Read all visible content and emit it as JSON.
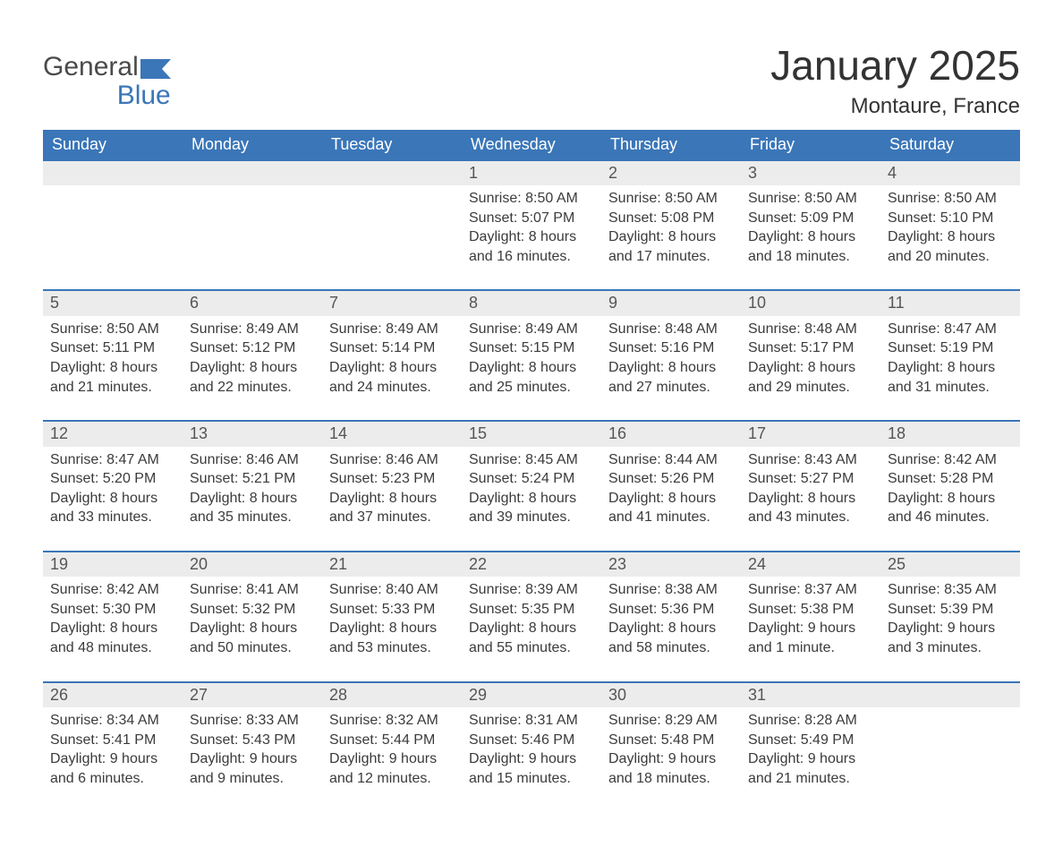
{
  "brand": {
    "general": "General",
    "blue": "Blue"
  },
  "colors": {
    "header_bg": "#3a76b8",
    "header_text": "#ffffff",
    "daynum_bg": "#ececec",
    "daynum_text": "#555555",
    "body_text": "#3b3b3b",
    "rule": "#3a76b8",
    "page_bg": "#ffffff"
  },
  "title": "January 2025",
  "location": "Montaure, France",
  "weekdays": [
    "Sunday",
    "Monday",
    "Tuesday",
    "Wednesday",
    "Thursday",
    "Friday",
    "Saturday"
  ],
  "weeks": [
    [
      null,
      null,
      null,
      {
        "n": "1",
        "sr": "Sunrise: 8:50 AM",
        "ss": "Sunset: 5:07 PM",
        "d1": "Daylight: 8 hours",
        "d2": "and 16 minutes."
      },
      {
        "n": "2",
        "sr": "Sunrise: 8:50 AM",
        "ss": "Sunset: 5:08 PM",
        "d1": "Daylight: 8 hours",
        "d2": "and 17 minutes."
      },
      {
        "n": "3",
        "sr": "Sunrise: 8:50 AM",
        "ss": "Sunset: 5:09 PM",
        "d1": "Daylight: 8 hours",
        "d2": "and 18 minutes."
      },
      {
        "n": "4",
        "sr": "Sunrise: 8:50 AM",
        "ss": "Sunset: 5:10 PM",
        "d1": "Daylight: 8 hours",
        "d2": "and 20 minutes."
      }
    ],
    [
      {
        "n": "5",
        "sr": "Sunrise: 8:50 AM",
        "ss": "Sunset: 5:11 PM",
        "d1": "Daylight: 8 hours",
        "d2": "and 21 minutes."
      },
      {
        "n": "6",
        "sr": "Sunrise: 8:49 AM",
        "ss": "Sunset: 5:12 PM",
        "d1": "Daylight: 8 hours",
        "d2": "and 22 minutes."
      },
      {
        "n": "7",
        "sr": "Sunrise: 8:49 AM",
        "ss": "Sunset: 5:14 PM",
        "d1": "Daylight: 8 hours",
        "d2": "and 24 minutes."
      },
      {
        "n": "8",
        "sr": "Sunrise: 8:49 AM",
        "ss": "Sunset: 5:15 PM",
        "d1": "Daylight: 8 hours",
        "d2": "and 25 minutes."
      },
      {
        "n": "9",
        "sr": "Sunrise: 8:48 AM",
        "ss": "Sunset: 5:16 PM",
        "d1": "Daylight: 8 hours",
        "d2": "and 27 minutes."
      },
      {
        "n": "10",
        "sr": "Sunrise: 8:48 AM",
        "ss": "Sunset: 5:17 PM",
        "d1": "Daylight: 8 hours",
        "d2": "and 29 minutes."
      },
      {
        "n": "11",
        "sr": "Sunrise: 8:47 AM",
        "ss": "Sunset: 5:19 PM",
        "d1": "Daylight: 8 hours",
        "d2": "and 31 minutes."
      }
    ],
    [
      {
        "n": "12",
        "sr": "Sunrise: 8:47 AM",
        "ss": "Sunset: 5:20 PM",
        "d1": "Daylight: 8 hours",
        "d2": "and 33 minutes."
      },
      {
        "n": "13",
        "sr": "Sunrise: 8:46 AM",
        "ss": "Sunset: 5:21 PM",
        "d1": "Daylight: 8 hours",
        "d2": "and 35 minutes."
      },
      {
        "n": "14",
        "sr": "Sunrise: 8:46 AM",
        "ss": "Sunset: 5:23 PM",
        "d1": "Daylight: 8 hours",
        "d2": "and 37 minutes."
      },
      {
        "n": "15",
        "sr": "Sunrise: 8:45 AM",
        "ss": "Sunset: 5:24 PM",
        "d1": "Daylight: 8 hours",
        "d2": "and 39 minutes."
      },
      {
        "n": "16",
        "sr": "Sunrise: 8:44 AM",
        "ss": "Sunset: 5:26 PM",
        "d1": "Daylight: 8 hours",
        "d2": "and 41 minutes."
      },
      {
        "n": "17",
        "sr": "Sunrise: 8:43 AM",
        "ss": "Sunset: 5:27 PM",
        "d1": "Daylight: 8 hours",
        "d2": "and 43 minutes."
      },
      {
        "n": "18",
        "sr": "Sunrise: 8:42 AM",
        "ss": "Sunset: 5:28 PM",
        "d1": "Daylight: 8 hours",
        "d2": "and 46 minutes."
      }
    ],
    [
      {
        "n": "19",
        "sr": "Sunrise: 8:42 AM",
        "ss": "Sunset: 5:30 PM",
        "d1": "Daylight: 8 hours",
        "d2": "and 48 minutes."
      },
      {
        "n": "20",
        "sr": "Sunrise: 8:41 AM",
        "ss": "Sunset: 5:32 PM",
        "d1": "Daylight: 8 hours",
        "d2": "and 50 minutes."
      },
      {
        "n": "21",
        "sr": "Sunrise: 8:40 AM",
        "ss": "Sunset: 5:33 PM",
        "d1": "Daylight: 8 hours",
        "d2": "and 53 minutes."
      },
      {
        "n": "22",
        "sr": "Sunrise: 8:39 AM",
        "ss": "Sunset: 5:35 PM",
        "d1": "Daylight: 8 hours",
        "d2": "and 55 minutes."
      },
      {
        "n": "23",
        "sr": "Sunrise: 8:38 AM",
        "ss": "Sunset: 5:36 PM",
        "d1": "Daylight: 8 hours",
        "d2": "and 58 minutes."
      },
      {
        "n": "24",
        "sr": "Sunrise: 8:37 AM",
        "ss": "Sunset: 5:38 PM",
        "d1": "Daylight: 9 hours",
        "d2": "and 1 minute."
      },
      {
        "n": "25",
        "sr": "Sunrise: 8:35 AM",
        "ss": "Sunset: 5:39 PM",
        "d1": "Daylight: 9 hours",
        "d2": "and 3 minutes."
      }
    ],
    [
      {
        "n": "26",
        "sr": "Sunrise: 8:34 AM",
        "ss": "Sunset: 5:41 PM",
        "d1": "Daylight: 9 hours",
        "d2": "and 6 minutes."
      },
      {
        "n": "27",
        "sr": "Sunrise: 8:33 AM",
        "ss": "Sunset: 5:43 PM",
        "d1": "Daylight: 9 hours",
        "d2": "and 9 minutes."
      },
      {
        "n": "28",
        "sr": "Sunrise: 8:32 AM",
        "ss": "Sunset: 5:44 PM",
        "d1": "Daylight: 9 hours",
        "d2": "and 12 minutes."
      },
      {
        "n": "29",
        "sr": "Sunrise: 8:31 AM",
        "ss": "Sunset: 5:46 PM",
        "d1": "Daylight: 9 hours",
        "d2": "and 15 minutes."
      },
      {
        "n": "30",
        "sr": "Sunrise: 8:29 AM",
        "ss": "Sunset: 5:48 PM",
        "d1": "Daylight: 9 hours",
        "d2": "and 18 minutes."
      },
      {
        "n": "31",
        "sr": "Sunrise: 8:28 AM",
        "ss": "Sunset: 5:49 PM",
        "d1": "Daylight: 9 hours",
        "d2": "and 21 minutes."
      },
      null
    ]
  ]
}
